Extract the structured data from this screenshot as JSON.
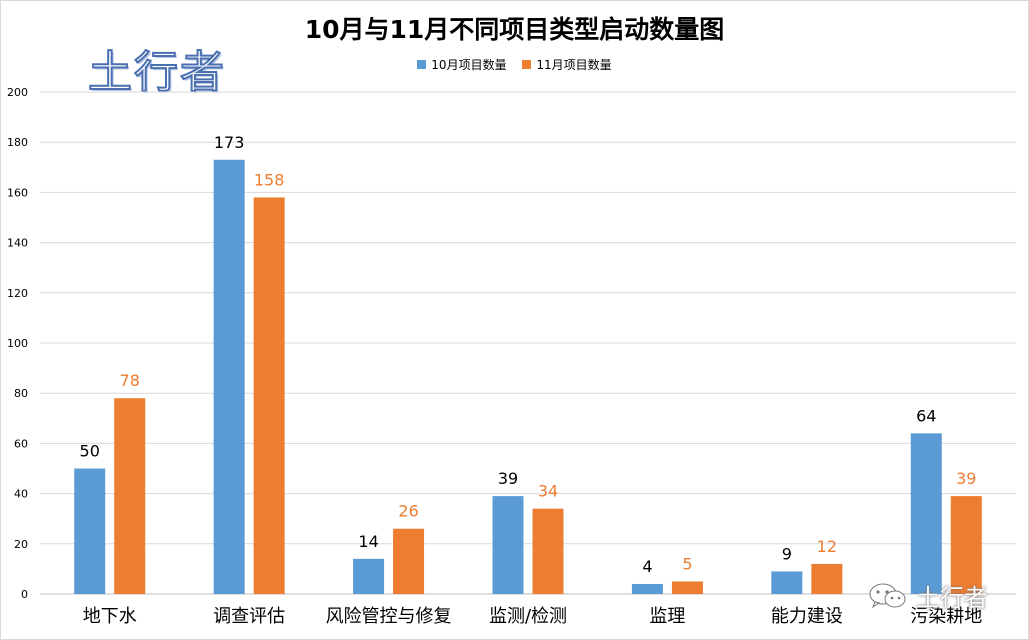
{
  "watermark": {
    "logo_text": "土行者",
    "footer_text": "土行者",
    "icon": "wechat-icon"
  },
  "chart_data": {
    "type": "bar",
    "title": "10月与11月不同项目类型启动数量图",
    "categories": [
      "地下水",
      "调查评估",
      "风险管控与修复",
      "监测/检测",
      "监理",
      "能力建设",
      "污染耕地"
    ],
    "series": [
      {
        "name": "10月项目数量",
        "color": "#5b9bd5",
        "label_color": "#000000",
        "values": [
          50,
          173,
          14,
          39,
          4,
          9,
          64
        ]
      },
      {
        "name": "11月项目数量",
        "color": "#ed7d31",
        "label_color": "#ed7d31",
        "values": [
          78,
          158,
          26,
          34,
          5,
          12,
          39
        ]
      }
    ],
    "ylim": [
      0,
      200
    ],
    "yticks": [
      0,
      20,
      40,
      60,
      80,
      100,
      120,
      140,
      160,
      180,
      200
    ],
    "grid": true,
    "legend_position": "top-center",
    "xlabel": "",
    "ylabel": ""
  }
}
